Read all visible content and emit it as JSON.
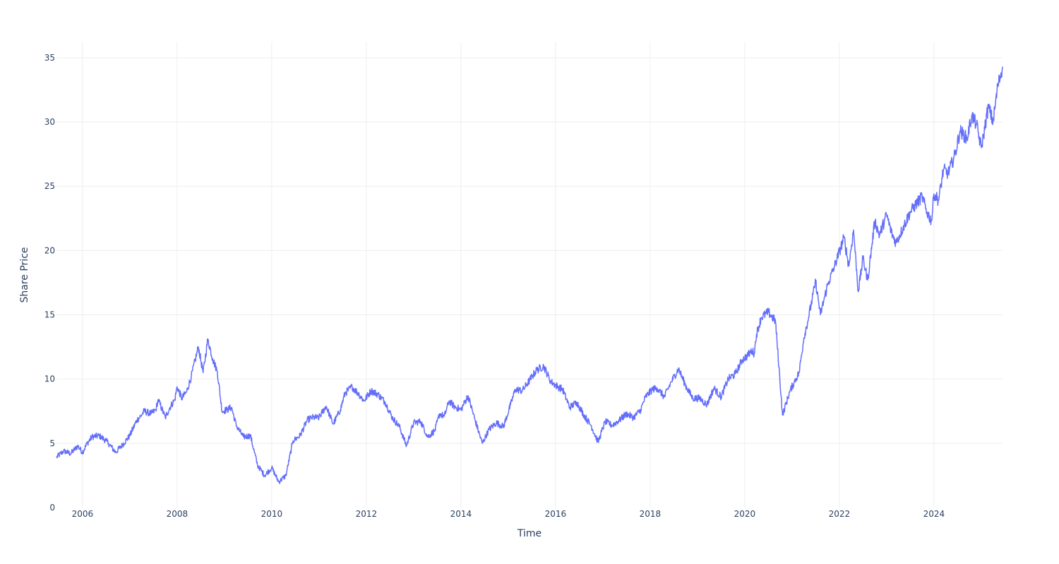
{
  "chart_data": {
    "type": "line",
    "title": "",
    "xlabel": "Time",
    "ylabel": "Share Price",
    "x_range": [
      2005.45,
      2025.45
    ],
    "ylim": [
      0,
      36.2
    ],
    "x_ticks": [
      {
        "value": 2006,
        "label": "2006"
      },
      {
        "value": 2008,
        "label": "2008"
      },
      {
        "value": 2010,
        "label": "2010"
      },
      {
        "value": 2012,
        "label": "2012"
      },
      {
        "value": 2014,
        "label": "2014"
      },
      {
        "value": 2016,
        "label": "2016"
      },
      {
        "value": 2018,
        "label": "2018"
      },
      {
        "value": 2020,
        "label": "2020"
      },
      {
        "value": 2022,
        "label": "2022"
      },
      {
        "value": 2024,
        "label": "2024"
      }
    ],
    "y_ticks": [
      {
        "value": 0,
        "label": "0"
      },
      {
        "value": 5,
        "label": "5"
      },
      {
        "value": 10,
        "label": "10"
      },
      {
        "value": 15,
        "label": "15"
      },
      {
        "value": 20,
        "label": "20"
      },
      {
        "value": 25,
        "label": "25"
      },
      {
        "value": 30,
        "label": "30"
      },
      {
        "value": 35,
        "label": "35"
      }
    ],
    "grid": true,
    "series": [
      {
        "color": "#636efa",
        "x": [
          2005.45,
          2005.6,
          2005.75,
          2005.9,
          2006.0,
          2006.1,
          2006.2,
          2006.35,
          2006.5,
          2006.55,
          2006.7,
          2006.85,
          2007.0,
          2007.15,
          2007.25,
          2007.3,
          2007.45,
          2007.55,
          2007.6,
          2007.75,
          2007.85,
          2007.95,
          2008.0,
          2008.1,
          2008.2,
          2008.3,
          2008.45,
          2008.55,
          2008.65,
          2008.75,
          2008.85,
          2008.95,
          2009.05,
          2009.15,
          2009.25,
          2009.4,
          2009.55,
          2009.7,
          2009.85,
          2010.0,
          2010.15,
          2010.3,
          2010.45,
          2010.6,
          2010.75,
          2010.85,
          2011.0,
          2011.15,
          2011.3,
          2011.45,
          2011.55,
          2011.7,
          2011.85,
          2011.95,
          2012.1,
          2012.25,
          2012.4,
          2012.55,
          2012.7,
          2012.85,
          2013.0,
          2013.15,
          2013.3,
          2013.45,
          2013.55,
          2013.65,
          2013.75,
          2013.85,
          2014.0,
          2014.15,
          2014.3,
          2014.45,
          2014.6,
          2014.75,
          2014.9,
          2015.05,
          2015.15,
          2015.3,
          2015.45,
          2015.6,
          2015.75,
          2015.9,
          2016.05,
          2016.15,
          2016.3,
          2016.45,
          2016.6,
          2016.75,
          2016.9,
          2017.05,
          2017.2,
          2017.35,
          2017.5,
          2017.65,
          2017.8,
          2017.9,
          2018.05,
          2018.15,
          2018.3,
          2018.45,
          2018.6,
          2018.75,
          2018.9,
          2019.05,
          2019.2,
          2019.35,
          2019.5,
          2019.65,
          2019.8,
          2019.95,
          2020.05,
          2020.15,
          2020.2,
          2020.25,
          2020.35,
          2020.5,
          2020.65,
          2020.8,
          2020.95,
          2021.05,
          2021.15,
          2021.25,
          2021.35,
          2021.5,
          2021.6,
          2021.75,
          2021.9,
          2022.0,
          2022.1,
          2022.2,
          2022.3,
          2022.4,
          2022.5,
          2022.6,
          2022.75,
          2022.85,
          2023.0,
          2023.1,
          2023.2,
          2023.35,
          2023.5,
          2023.6,
          2023.75,
          2023.85,
          2023.95,
          2024.0,
          2024.1,
          2024.2,
          2024.3,
          2024.45,
          2024.55,
          2024.7,
          2024.8,
          2024.9,
          2025.0,
          2025.05,
          2025.15,
          2025.25,
          2025.35,
          2025.45
        ],
        "y": [
          3.9,
          4.4,
          4.2,
          4.8,
          4.3,
          5.0,
          5.5,
          5.6,
          5.2,
          5.0,
          4.3,
          4.9,
          5.6,
          6.8,
          7.2,
          7.5,
          7.3,
          7.6,
          8.4,
          7.0,
          7.8,
          8.4,
          9.4,
          8.5,
          9.0,
          10.2,
          12.5,
          10.5,
          13.1,
          11.6,
          10.6,
          7.5,
          7.6,
          7.8,
          6.4,
          5.5,
          5.6,
          3.3,
          2.5,
          3.1,
          2.0,
          2.5,
          5.2,
          5.6,
          6.8,
          7.0,
          7.0,
          7.9,
          6.5,
          7.6,
          8.9,
          9.4,
          8.8,
          8.3,
          9.1,
          8.8,
          8.2,
          7.0,
          6.3,
          4.8,
          6.6,
          6.7,
          5.5,
          6.0,
          7.3,
          7.1,
          8.3,
          7.9,
          7.6,
          8.7,
          6.8,
          5.0,
          6.1,
          6.6,
          6.3,
          8.0,
          9.2,
          9.1,
          9.9,
          10.7,
          11.0,
          9.8,
          9.4,
          9.2,
          7.8,
          8.2,
          7.2,
          6.4,
          5.1,
          6.7,
          6.4,
          6.8,
          7.3,
          7.0,
          7.6,
          8.6,
          9.2,
          9.3,
          8.6,
          9.8,
          10.8,
          9.5,
          8.5,
          8.5,
          8.0,
          9.3,
          8.6,
          10.0,
          10.4,
          11.5,
          11.8,
          12.2,
          12.0,
          13.5,
          14.8,
          15.2,
          14.5,
          7.2,
          9.0,
          9.8,
          10.5,
          13.2,
          14.8,
          17.6,
          15.0,
          17.3,
          18.8,
          19.9,
          21.0,
          18.8,
          21.6,
          16.8,
          19.4,
          17.7,
          22.3,
          21.2,
          22.8,
          21.4,
          20.6,
          21.8,
          23.0,
          23.5,
          24.2,
          23.0,
          22.3,
          24.4,
          23.9,
          26.3,
          26.0,
          27.5,
          29.3,
          28.7,
          30.5,
          29.8,
          28.0,
          29.0,
          31.2,
          30.0,
          32.8,
          34.3
        ]
      }
    ]
  }
}
